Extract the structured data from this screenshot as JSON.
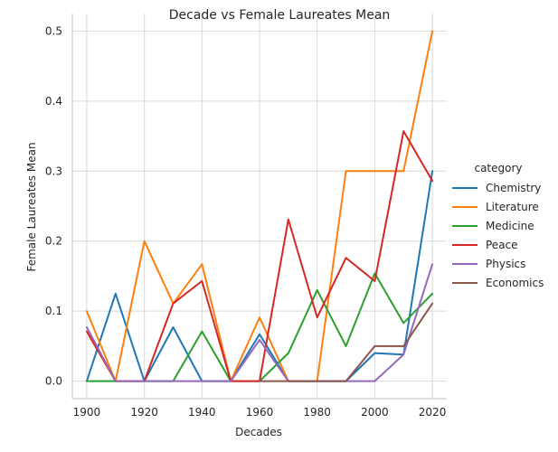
{
  "chart_data": {
    "type": "line",
    "title": "Decade vs Female Laureates Mean",
    "xlabel": "Decades",
    "ylabel": "Female Laureates Mean",
    "x": [
      1900,
      1910,
      1920,
      1930,
      1940,
      1950,
      1960,
      1970,
      1980,
      1990,
      2000,
      2010,
      2020
    ],
    "xlim": [
      1895,
      2025
    ],
    "ylim": [
      -0.025,
      0.525
    ],
    "xticks": [
      "1900",
      "1920",
      "1940",
      "1960",
      "1980",
      "2000",
      "2020"
    ],
    "yticks": [
      "0.0",
      "0.1",
      "0.2",
      "0.3",
      "0.4",
      "0.5"
    ],
    "grid": true,
    "legend": {
      "title": "category",
      "placement": "right"
    },
    "series": [
      {
        "name": "Chemistry",
        "color": "#1f77b4",
        "values": [
          0.0,
          0.125,
          0.0,
          0.077,
          0.0,
          0.0,
          0.067,
          0.0,
          0.0,
          0.0,
          0.04,
          0.038,
          0.3
        ]
      },
      {
        "name": "Literature",
        "color": "#ff7f0e",
        "values": [
          0.1,
          0.0,
          0.2,
          0.111,
          0.167,
          0.0,
          0.091,
          0.0,
          0.0,
          0.3,
          0.3,
          0.3,
          0.5
        ]
      },
      {
        "name": "Medicine",
        "color": "#2ca02c",
        "values": [
          0.0,
          0.0,
          0.0,
          0.0,
          0.071,
          0.0,
          0.0,
          0.04,
          0.13,
          0.05,
          0.154,
          0.083,
          0.125
        ]
      },
      {
        "name": "Peace",
        "color": "#d62728",
        "values": [
          0.071,
          0.0,
          0.0,
          0.111,
          0.143,
          0.0,
          0.0,
          0.231,
          0.091,
          0.176,
          0.143,
          0.357,
          0.286
        ]
      },
      {
        "name": "Physics",
        "color": "#9467bd",
        "values": [
          0.077,
          0.0,
          0.0,
          0.0,
          0.0,
          0.0,
          0.059,
          0.0,
          0.0,
          0.0,
          0.0,
          0.038,
          0.167
        ]
      },
      {
        "name": "Economics",
        "color": "#8c564b",
        "values": [
          null,
          null,
          null,
          null,
          null,
          null,
          0.0,
          0.0,
          0.0,
          0.0,
          0.05,
          0.05,
          0.111
        ]
      }
    ]
  }
}
